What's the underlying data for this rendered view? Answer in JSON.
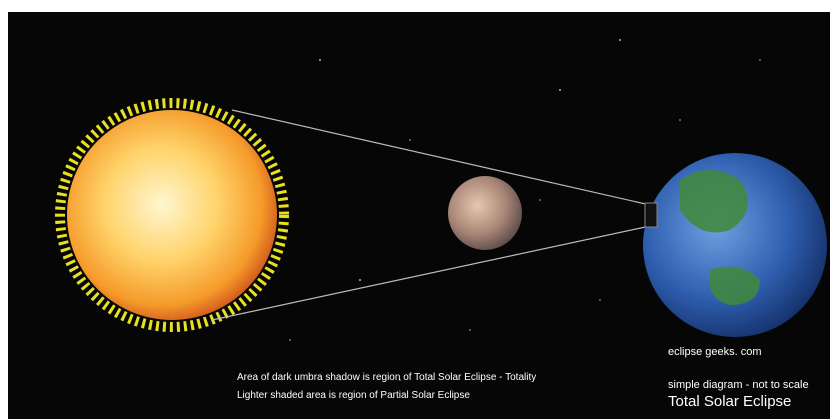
{
  "title": "Total Solar Eclipse",
  "note": "simple diagram - not to scale",
  "credit": "eclipse geeks. com",
  "captions": [
    "Area of dark umbra shadow is region of Total Solar Eclipse - Totality",
    "Lighter shaded area is region of Partial Solar Eclipse"
  ]
}
